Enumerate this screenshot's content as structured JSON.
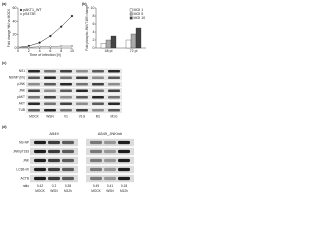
{
  "panel_labels": [
    "(a)",
    "(b)",
    "(c)",
    "(d)"
  ],
  "chart_data": [
    {
      "type": "line",
      "y_label": "Fold change %M vs MOCK",
      "x_label": "Time of infection [h]",
      "x": [
        0,
        2,
        4,
        6,
        8,
        10
      ],
      "series": [
        {
          "name": "pAKT1_WT",
          "color": "#222222",
          "values": [
            1,
            3,
            8,
            18,
            32,
            48
          ]
        },
        {
          "name": "pS473E",
          "color": "#666666",
          "values": [
            1,
            1,
            2,
            2,
            3,
            3
          ]
        }
      ],
      "xlim": [
        0,
        10
      ],
      "xticks": [
        0,
        2,
        4,
        6,
        8,
        10
      ],
      "ylim": [
        0,
        60
      ],
      "yticks": [
        0,
        20,
        40,
        60
      ]
    },
    {
      "type": "bar",
      "y_label": "Fold phospho JNK/T183 change",
      "categories": [
        "48 pi",
        "72 pi"
      ],
      "series": [
        {
          "name": "MOI 1",
          "color": "#ffffff",
          "values": [
            1.2,
            2
          ]
        },
        {
          "name": "MOI 5",
          "color": "#aaaaaa",
          "values": [
            2,
            3.5
          ]
        },
        {
          "name": "MOI 10",
          "color": "#444444",
          "values": [
            3,
            5
          ]
        }
      ],
      "ylim": [
        0,
        10
      ],
      "yticks": [
        0,
        2,
        4,
        6,
        8,
        10
      ]
    }
  ],
  "blot_c": {
    "rows": [
      "NS1",
      "NS/NP (hh)",
      "pJNK",
      "JNK",
      "pAKT",
      "AKT",
      "TUB"
    ],
    "lanes": [
      "MOCK",
      "WSN",
      "V1",
      "V1G",
      "M1",
      "M1G"
    ]
  },
  "blot_d": {
    "groups": [
      {
        "title": "A549",
        "lanes": [
          "MOCK",
          "WSN",
          "M12h"
        ],
        "ratios": [
          0.42,
          0.2,
          0.38
        ]
      },
      {
        "title": "A549_JNKinh",
        "lanes": [
          "MOCK",
          "WSN",
          "M12h"
        ],
        "ratios": [
          0.49,
          0.41,
          0.18
        ]
      }
    ],
    "rows": [
      "NS-NP",
      "JNK/pT183",
      "JNK",
      "LC3B-I/II",
      "ACTB"
    ],
    "ratio_label": "ratio"
  }
}
